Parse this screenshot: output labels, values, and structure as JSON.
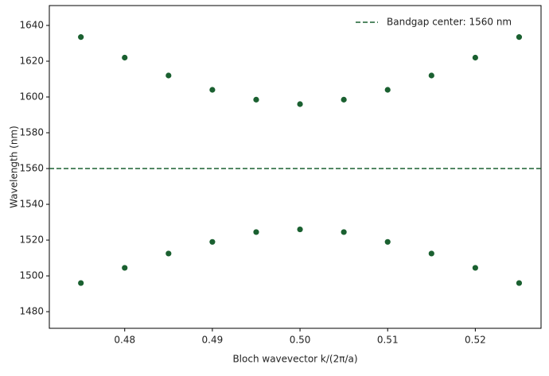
{
  "chart_data": {
    "type": "scatter",
    "x_label": "Bloch wavevector k/(2π/a)",
    "y_label": "Wavelength (nm)",
    "x": [
      0.475,
      0.48,
      0.485,
      0.49,
      0.495,
      0.5,
      0.505,
      0.51,
      0.515,
      0.52,
      0.525
    ],
    "series": [
      {
        "color": "#1a6030",
        "values": [
          1633.5,
          1622,
          1612,
          1604,
          1598.5,
          1596,
          1598.5,
          1604,
          1612,
          1622,
          1633.5
        ]
      },
      {
        "color": "#1a6030",
        "values": [
          1496,
          1504.5,
          1512.5,
          1519,
          1524.5,
          1526,
          1524.5,
          1519,
          1512.5,
          1504.5,
          1496
        ]
      }
    ],
    "hlines": [
      {
        "y": 1560,
        "label": "Bandgap center: 1560 nm",
        "color": "#1a6030",
        "style": "dashed"
      }
    ],
    "legend": "upper right",
    "xlim": [
      0.4714,
      0.5275
    ],
    "ylim": [
      1470.7,
      1651.1
    ],
    "xticks": [
      0.48,
      0.49,
      {
        "value": 0.5,
        "label": "0.50"
      },
      0.51,
      0.52
    ],
    "yticks": [
      1480,
      1500,
      1520,
      1540,
      1560,
      1580,
      1600,
      1620,
      1640
    ]
  }
}
